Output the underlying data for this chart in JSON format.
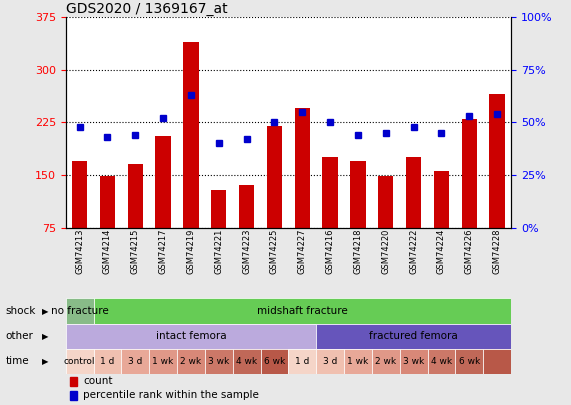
{
  "title": "GDS2020 / 1369167_at",
  "samples": [
    "GSM74213",
    "GSM74214",
    "GSM74215",
    "GSM74217",
    "GSM74219",
    "GSM74221",
    "GSM74223",
    "GSM74225",
    "GSM74227",
    "GSM74216",
    "GSM74218",
    "GSM74220",
    "GSM74222",
    "GSM74224",
    "GSM74226",
    "GSM74228"
  ],
  "bar_values": [
    170,
    148,
    165,
    205,
    340,
    128,
    135,
    220,
    245,
    175,
    170,
    148,
    175,
    155,
    230,
    265
  ],
  "dot_values": [
    48,
    43,
    44,
    52,
    63,
    40,
    42,
    50,
    55,
    50,
    44,
    45,
    48,
    45,
    53,
    54
  ],
  "ylim_left": [
    75,
    375
  ],
  "ylim_right": [
    0,
    100
  ],
  "yticks_left": [
    75,
    150,
    225,
    300,
    375
  ],
  "yticks_right": [
    0,
    25,
    50,
    75,
    100
  ],
  "bar_color": "#cc0000",
  "dot_color": "#0000cc",
  "bg_color": "#e8e8e8",
  "plot_bg": "#ffffff",
  "shock_labels": [
    {
      "text": "no fracture",
      "start": 0,
      "end": 1,
      "color": "#88bb88"
    },
    {
      "text": "midshaft fracture",
      "start": 1,
      "end": 16,
      "color": "#66cc55"
    }
  ],
  "other_labels": [
    {
      "text": "intact femora",
      "start": 0,
      "end": 9,
      "color": "#bbaadd"
    },
    {
      "text": "fractured femora",
      "start": 9,
      "end": 16,
      "color": "#6655bb"
    }
  ],
  "time_labels": [
    {
      "text": "control",
      "start": 0,
      "end": 1,
      "color": "#f5d5c8"
    },
    {
      "text": "1 d",
      "start": 1,
      "end": 2,
      "color": "#f0c0b0"
    },
    {
      "text": "3 d",
      "start": 2,
      "end": 3,
      "color": "#e8a898"
    },
    {
      "text": "1 wk",
      "start": 3,
      "end": 4,
      "color": "#e09888"
    },
    {
      "text": "2 wk",
      "start": 4,
      "end": 5,
      "color": "#d88878"
    },
    {
      "text": "3 wk",
      "start": 5,
      "end": 6,
      "color": "#cc7868"
    },
    {
      "text": "4 wk",
      "start": 6,
      "end": 7,
      "color": "#c06858"
    },
    {
      "text": "6 wk",
      "start": 7,
      "end": 8,
      "color": "#b85848"
    },
    {
      "text": "1 d",
      "start": 8,
      "end": 9,
      "color": "#f5d5c8"
    },
    {
      "text": "3 d",
      "start": 9,
      "end": 10,
      "color": "#f0c0b0"
    },
    {
      "text": "1 wk",
      "start": 10,
      "end": 11,
      "color": "#e8a898"
    },
    {
      "text": "2 wk",
      "start": 11,
      "end": 12,
      "color": "#e09888"
    },
    {
      "text": "3 wk",
      "start": 12,
      "end": 13,
      "color": "#d88878"
    },
    {
      "text": "4 wk",
      "start": 13,
      "end": 14,
      "color": "#cc7868"
    },
    {
      "text": "6 wk",
      "start": 14,
      "end": 15,
      "color": "#c06858"
    },
    {
      "text": "",
      "start": 15,
      "end": 16,
      "color": "#b85848"
    }
  ],
  "row_labels": [
    "shock",
    "other",
    "time"
  ],
  "title_fontsize": 10,
  "tick_fontsize": 8,
  "bar_width": 0.55
}
